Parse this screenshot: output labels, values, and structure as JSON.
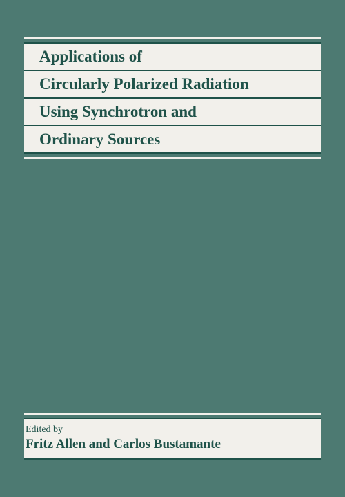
{
  "cover": {
    "background_color": "#4d7a72",
    "panel_color": "#f2f0eb",
    "text_color": "#1f5249",
    "rule_color": "#1f5249",
    "title_lines": [
      "Applications of",
      "Circularly Polarized Radiation",
      "Using Synchrotron and",
      "Ordinary Sources"
    ],
    "edited_by_label": "Edited by",
    "editors": "Fritz Allen and Carlos Bustamante"
  }
}
